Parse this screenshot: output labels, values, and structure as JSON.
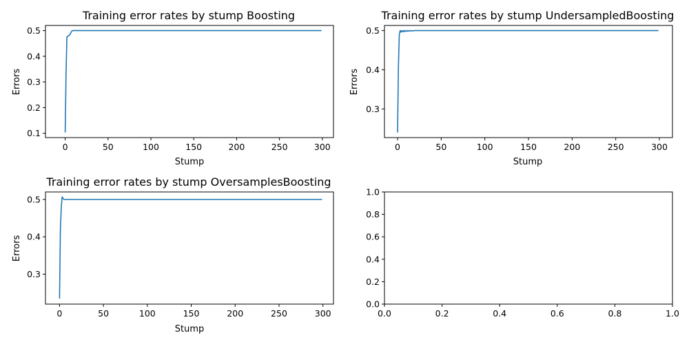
{
  "chart_data": [
    {
      "type": "line",
      "title": "Training error rates by stump Boosting",
      "xlabel": "Stump",
      "ylabel": "Errors",
      "xlim": [
        -23,
        313
      ],
      "ylim": [
        0.083,
        0.52
      ],
      "xticks": [
        0,
        50,
        100,
        150,
        200,
        250,
        300
      ],
      "yticks": [
        0.1,
        0.2,
        0.3,
        0.4,
        0.5
      ],
      "xtick_labels": [
        "0",
        "50",
        "100",
        "150",
        "200",
        "250",
        "300"
      ],
      "ytick_labels": [
        "0.1",
        "0.2",
        "0.3",
        "0.4",
        "0.5"
      ],
      "grid": false,
      "series": [
        {
          "color": "#1f77b4",
          "x": [
            0,
            1,
            2,
            3,
            4,
            5,
            6,
            7,
            8,
            9,
            10,
            20,
            50,
            100,
            150,
            200,
            250,
            299
          ],
          "y": [
            0.103,
            0.33,
            0.475,
            0.478,
            0.48,
            0.482,
            0.488,
            0.494,
            0.499,
            0.5,
            0.5,
            0.5,
            0.5,
            0.5,
            0.5,
            0.5,
            0.5,
            0.5
          ]
        }
      ]
    },
    {
      "type": "line",
      "title": "Training error rates by stump UndersampledBoosting",
      "xlabel": "Stump",
      "ylabel": "Errors",
      "xlim": [
        -15,
        315
      ],
      "ylim": [
        0.227,
        0.513
      ],
      "xticks": [
        0,
        50,
        100,
        150,
        200,
        250,
        300
      ],
      "yticks": [
        0.3,
        0.4,
        0.5
      ],
      "xtick_labels": [
        "0",
        "50",
        "100",
        "150",
        "200",
        "250",
        "300"
      ],
      "ytick_labels": [
        "0.3",
        "0.4",
        "0.5"
      ],
      "grid": false,
      "series": [
        {
          "color": "#1f77b4",
          "x": [
            0,
            1,
            2,
            3,
            4,
            5,
            6,
            7,
            8,
            9,
            10,
            11,
            12,
            13,
            14,
            15,
            16,
            20,
            50,
            100,
            150,
            200,
            250,
            299
          ],
          "y": [
            0.24,
            0.41,
            0.49,
            0.5,
            0.496,
            0.5,
            0.497,
            0.5,
            0.497,
            0.5,
            0.498,
            0.5,
            0.498,
            0.5,
            0.499,
            0.5,
            0.499,
            0.5,
            0.5,
            0.5,
            0.5,
            0.5,
            0.5,
            0.5
          ]
        }
      ]
    },
    {
      "type": "line",
      "title": "Training error rates by stump OversamplesBoosting",
      "xlabel": "Stump",
      "ylabel": "Errors",
      "xlim": [
        -16,
        312
      ],
      "ylim": [
        0.22,
        0.52
      ],
      "xticks": [
        0,
        50,
        100,
        150,
        200,
        250,
        300
      ],
      "yticks": [
        0.3,
        0.4,
        0.5
      ],
      "xtick_labels": [
        "0",
        "50",
        "100",
        "150",
        "200",
        "250",
        "300"
      ],
      "ytick_labels": [
        "0.3",
        "0.4",
        "0.5"
      ],
      "grid": false,
      "series": [
        {
          "color": "#1f77b4",
          "x": [
            0,
            1,
            2,
            3,
            4,
            5,
            6,
            7,
            10,
            20,
            50,
            100,
            150,
            200,
            250,
            299
          ],
          "y": [
            0.235,
            0.42,
            0.48,
            0.507,
            0.503,
            0.5,
            0.5,
            0.5,
            0.5,
            0.5,
            0.5,
            0.5,
            0.5,
            0.5,
            0.5,
            0.5
          ]
        }
      ]
    },
    {
      "type": "line",
      "title": "",
      "xlabel": "",
      "ylabel": "",
      "xlim": [
        0,
        1
      ],
      "ylim": [
        0,
        1
      ],
      "xticks": [
        0,
        0.2,
        0.4,
        0.6,
        0.8,
        1
      ],
      "yticks": [
        0,
        0.2,
        0.4,
        0.6,
        0.8,
        1
      ],
      "xtick_labels": [
        "0.0",
        "0.2",
        "0.4",
        "0.6",
        "0.8",
        "1.0"
      ],
      "ytick_labels": [
        "0.0",
        "0.2",
        "0.4",
        "0.6",
        "0.8",
        "1.0"
      ],
      "grid": false,
      "series": []
    }
  ]
}
